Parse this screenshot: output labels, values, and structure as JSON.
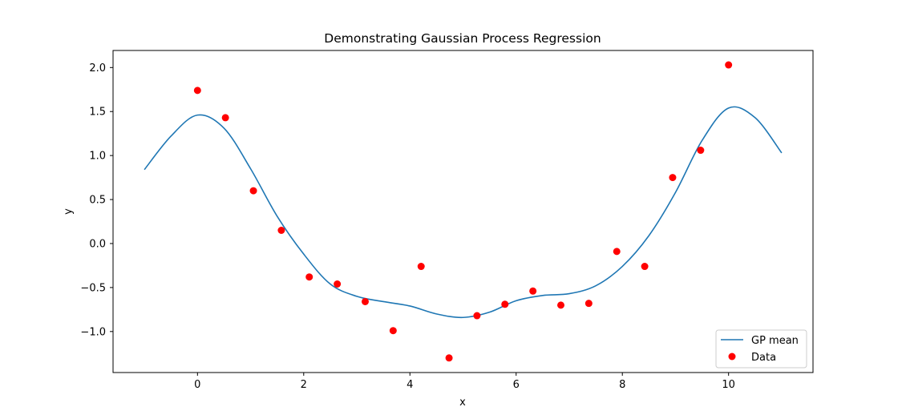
{
  "chart_data": {
    "type": "scatter",
    "title": "Demonstrating Gaussian Process Regression",
    "xlabel": "x",
    "ylabel": "y",
    "xlim": [
      -1.59,
      11.59
    ],
    "ylim": [
      -1.466,
      2.194
    ],
    "xticks": [
      0,
      2,
      4,
      6,
      8,
      10
    ],
    "yticks": [
      -1.0,
      -0.5,
      0.0,
      0.5,
      1.0,
      1.5,
      2.0
    ],
    "ytick_labels": [
      "−1.0",
      "−0.5",
      "0.0",
      "0.5",
      "1.0",
      "1.5",
      "2.0"
    ],
    "grid": false,
    "legend_position": "bottom-right",
    "series": [
      {
        "name": "GP mean",
        "kind": "line",
        "color": "#1f77b4",
        "points": [
          [
            -1.0,
            0.84
          ],
          [
            -0.5,
            1.22
          ],
          [
            0.0,
            1.46
          ],
          [
            0.5,
            1.31
          ],
          [
            1.0,
            0.85
          ],
          [
            1.5,
            0.31
          ],
          [
            2.0,
            -0.12
          ],
          [
            2.5,
            -0.46
          ],
          [
            3.0,
            -0.6
          ],
          [
            3.5,
            -0.66
          ],
          [
            4.0,
            -0.71
          ],
          [
            4.5,
            -0.8
          ],
          [
            5.0,
            -0.84
          ],
          [
            5.5,
            -0.78
          ],
          [
            6.0,
            -0.65
          ],
          [
            6.5,
            -0.59
          ],
          [
            7.0,
            -0.57
          ],
          [
            7.5,
            -0.48
          ],
          [
            8.0,
            -0.26
          ],
          [
            8.5,
            0.09
          ],
          [
            9.0,
            0.58
          ],
          [
            9.5,
            1.17
          ],
          [
            10.0,
            1.54
          ],
          [
            10.5,
            1.43
          ],
          [
            11.0,
            1.03
          ]
        ]
      },
      {
        "name": "Data",
        "kind": "scatter",
        "color": "#ff0000",
        "x": [
          0.0,
          0.526,
          1.053,
          1.579,
          2.105,
          2.632,
          3.158,
          3.684,
          4.211,
          4.737,
          5.263,
          5.789,
          6.316,
          6.842,
          7.368,
          7.895,
          8.421,
          8.947,
          9.474,
          10.0
        ],
        "y": [
          1.74,
          1.43,
          0.6,
          0.15,
          -0.38,
          -0.46,
          -0.66,
          -0.99,
          -0.26,
          -1.3,
          -0.82,
          -0.69,
          -0.54,
          -0.7,
          -0.68,
          -0.09,
          -0.26,
          0.75,
          1.06,
          2.03
        ]
      }
    ]
  }
}
